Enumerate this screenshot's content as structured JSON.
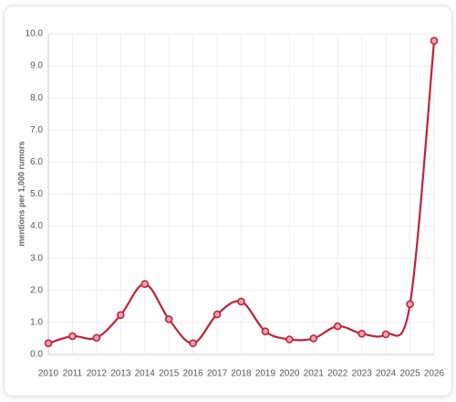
{
  "chart_data": {
    "type": "line",
    "y_label": "mentions per 1,000 rumors",
    "categories": [
      "2010",
      "2011",
      "2012",
      "2013",
      "2014",
      "2015",
      "2016",
      "2017",
      "2018",
      "2019",
      "2020",
      "2021",
      "2022",
      "2023",
      "2024",
      "2025",
      "2026"
    ],
    "series": [
      {
        "name": "mentions",
        "color": "#c0223b",
        "values": [
          0.35,
          0.57,
          0.52,
          1.23,
          2.2,
          1.1,
          0.35,
          1.25,
          1.65,
          0.72,
          0.47,
          0.5,
          0.88,
          0.65,
          0.63,
          1.57,
          9.78
        ]
      }
    ],
    "ylim": [
      0,
      10
    ],
    "yticks": [
      {
        "value": 0,
        "label": "0.0"
      },
      {
        "value": 1,
        "label": "1.0"
      },
      {
        "value": 2,
        "label": "2.0"
      },
      {
        "value": 3,
        "label": "3.0"
      },
      {
        "value": 4,
        "label": "4.0"
      },
      {
        "value": 5,
        "label": "5.0"
      },
      {
        "value": 6,
        "label": "6.0"
      },
      {
        "value": 7,
        "label": "7.0"
      },
      {
        "value": 8,
        "label": "8.0"
      },
      {
        "value": 9,
        "label": "9.0"
      },
      {
        "value": 10,
        "label": "10.0"
      }
    ],
    "grid": true
  }
}
